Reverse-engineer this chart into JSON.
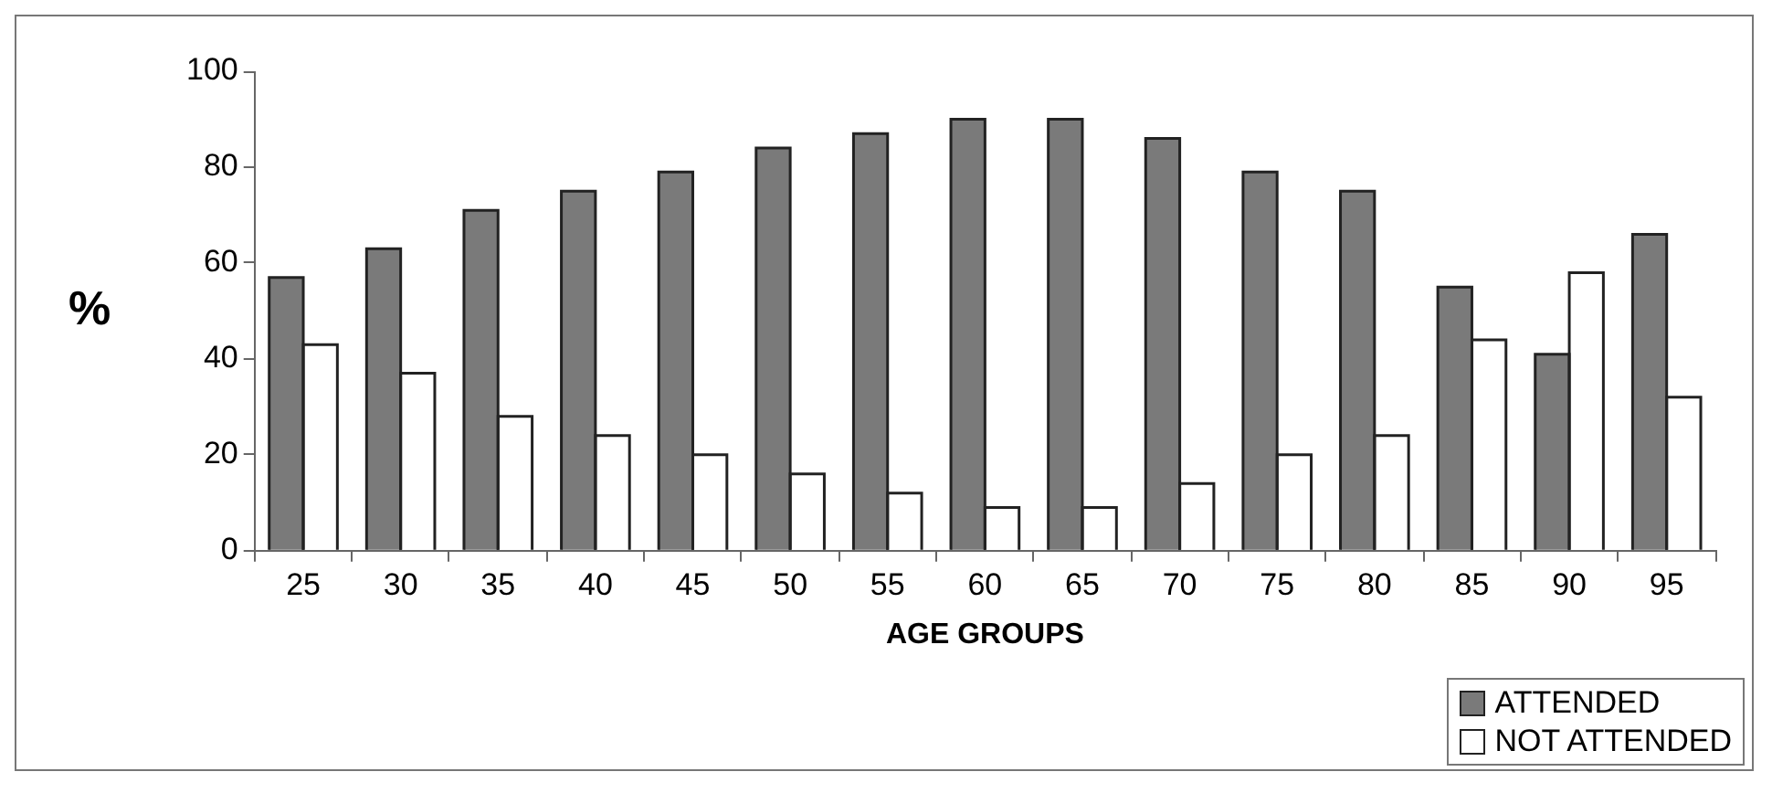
{
  "chart_data": {
    "type": "bar",
    "xlabel": "AGE GROUPS",
    "ylabel": "%",
    "categories": [
      "25",
      "30",
      "35",
      "40",
      "45",
      "50",
      "55",
      "60",
      "65",
      "70",
      "75",
      "80",
      "85",
      "90",
      "95"
    ],
    "series": [
      {
        "name": "ATTENDED",
        "color": "#7a7a7a",
        "values": [
          57,
          63,
          71,
          75,
          79,
          84,
          87,
          90,
          90,
          86,
          79,
          75,
          55,
          41,
          66
        ]
      },
      {
        "name": "NOT ATTENDED",
        "color": "#ffffff",
        "values": [
          43,
          37,
          28,
          24,
          20,
          16,
          12,
          9,
          9,
          14,
          20,
          24,
          44,
          58,
          32
        ]
      }
    ],
    "ylim": [
      0,
      100
    ],
    "yticks": [
      0,
      20,
      40,
      60,
      80,
      100
    ],
    "grid": false,
    "legend": "bottom right"
  }
}
